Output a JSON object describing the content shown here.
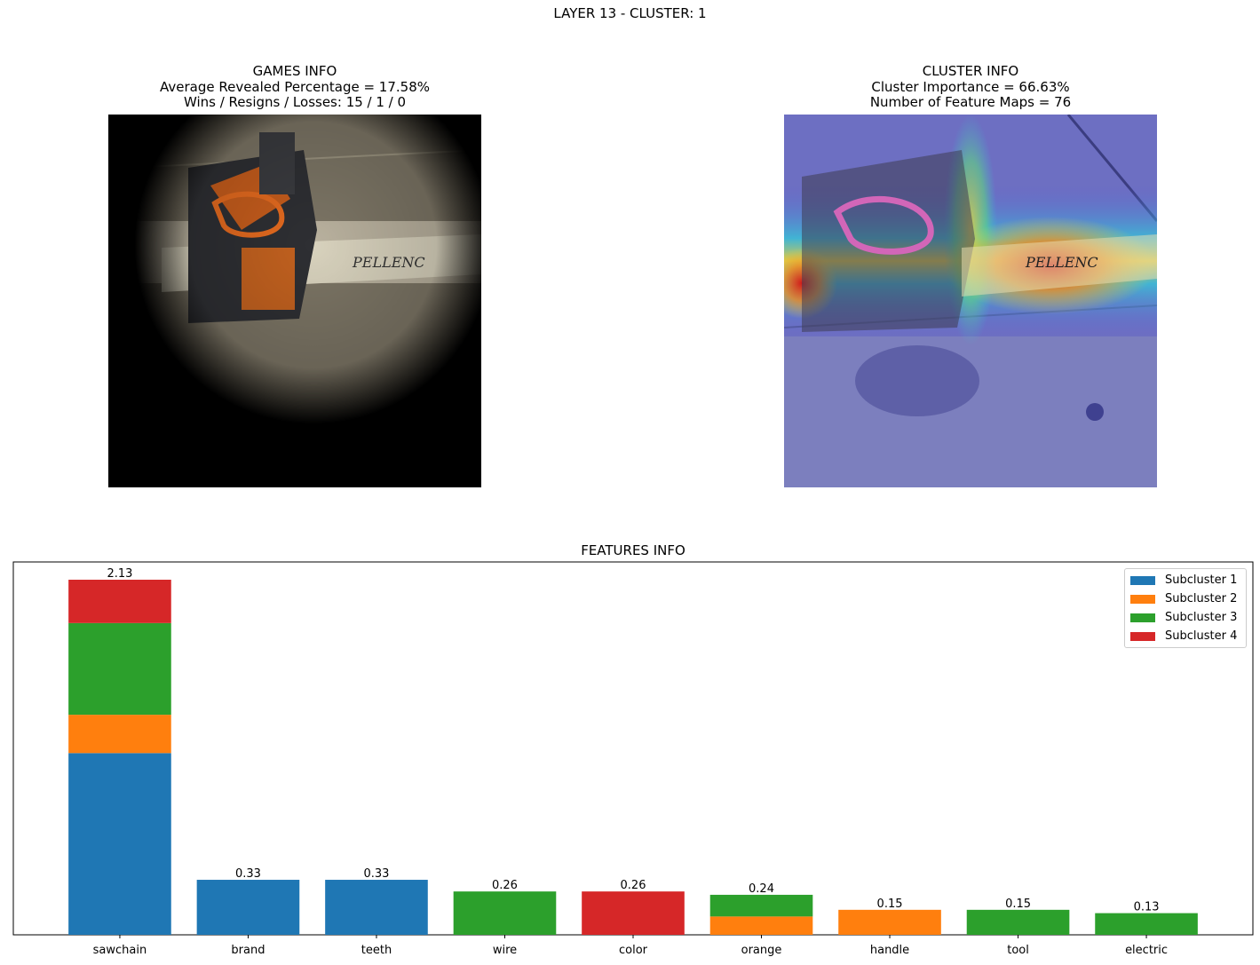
{
  "suptitle": "LAYER 13 - CLUSTER: 1",
  "games_panel": {
    "title": "GAMES INFO",
    "line2": "Average Revealed Percentage = 17.58%",
    "line3": "Wins / Resigns / Losses: 15 / 1 / 0",
    "image": "masked chainsaw image (revealed region)"
  },
  "cluster_panel": {
    "title": "CLUSTER INFO",
    "line2": "Cluster Importance = 66.63%",
    "line3": "Number of Feature Maps = 76",
    "image": "chainsaw image with heatmap overlay"
  },
  "chart_data": {
    "type": "bar",
    "stacked": true,
    "title": "FEATURES INFO",
    "xlabel": "",
    "ylabel": "",
    "categories": [
      "sawchain",
      "brand",
      "teeth",
      "wire",
      "color",
      "orange",
      "handle",
      "tool",
      "electric"
    ],
    "totals": [
      "2.13",
      "0.33",
      "0.33",
      "0.26",
      "0.26",
      "0.24",
      "0.15",
      "0.15",
      "0.13"
    ],
    "series": [
      {
        "name": "Subcluster 1",
        "color": "#1f77b4",
        "values": [
          1.09,
          0.33,
          0.33,
          0,
          0,
          0,
          0,
          0,
          0
        ]
      },
      {
        "name": "Subcluster 2",
        "color": "#ff7f0e",
        "values": [
          0.23,
          0,
          0,
          0,
          0,
          0.11,
          0.15,
          0,
          0
        ]
      },
      {
        "name": "Subcluster 3",
        "color": "#2ca02c",
        "values": [
          0.55,
          0,
          0,
          0.26,
          0,
          0.13,
          0,
          0.15,
          0.13
        ]
      },
      {
        "name": "Subcluster 4",
        "color": "#d62728",
        "values": [
          0.26,
          0,
          0,
          0,
          0.26,
          0,
          0,
          0,
          0
        ]
      }
    ],
    "ylim": [
      0,
      2.13
    ],
    "legend_position": "upper-right",
    "grid": false
  }
}
